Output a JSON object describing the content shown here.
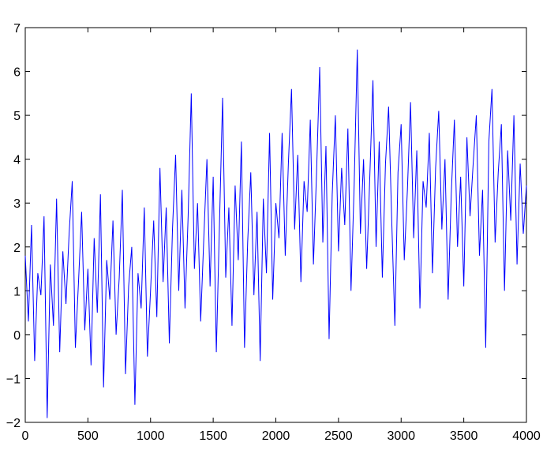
{
  "chart_data": {
    "type": "line",
    "color": "#0000ff",
    "xlim": [
      0,
      4000
    ],
    "xticks": [
      0,
      500,
      1000,
      1500,
      2000,
      2500,
      3000,
      3500,
      4000
    ],
    "ylim": [
      -2,
      7
    ],
    "yticks": [
      {
        "value": -2,
        "label": "−2"
      },
      {
        "value": -1,
        "label": "−1"
      },
      0,
      1,
      2,
      3,
      4,
      5,
      6,
      7
    ],
    "x": [
      0,
      25,
      50,
      75,
      100,
      125,
      150,
      175,
      200,
      225,
      250,
      275,
      300,
      325,
      350,
      375,
      400,
      425,
      450,
      475,
      500,
      525,
      550,
      575,
      600,
      625,
      650,
      675,
      700,
      725,
      750,
      775,
      800,
      825,
      850,
      875,
      900,
      925,
      950,
      975,
      1000,
      1025,
      1050,
      1075,
      1100,
      1125,
      1150,
      1175,
      1200,
      1225,
      1250,
      1275,
      1300,
      1325,
      1350,
      1375,
      1400,
      1425,
      1450,
      1475,
      1500,
      1525,
      1550,
      1575,
      1600,
      1625,
      1650,
      1675,
      1700,
      1725,
      1750,
      1775,
      1800,
      1825,
      1850,
      1875,
      1900,
      1925,
      1950,
      1975,
      2000,
      2025,
      2050,
      2075,
      2100,
      2125,
      2150,
      2175,
      2200,
      2225,
      2250,
      2275,
      2300,
      2325,
      2350,
      2375,
      2400,
      2425,
      2450,
      2475,
      2500,
      2525,
      2550,
      2575,
      2600,
      2625,
      2650,
      2675,
      2700,
      2725,
      2750,
      2775,
      2800,
      2825,
      2850,
      2875,
      2900,
      2925,
      2950,
      2975,
      3000,
      3025,
      3050,
      3075,
      3100,
      3125,
      3150,
      3175,
      3200,
      3225,
      3250,
      3275,
      3300,
      3325,
      3350,
      3375,
      3400,
      3425,
      3450,
      3475,
      3500,
      3525,
      3550,
      3575,
      3600,
      3625,
      3650,
      3675,
      3700,
      3725,
      3750,
      3775,
      3800,
      3825,
      3850,
      3875,
      3900,
      3925,
      3950,
      3975,
      4000
    ],
    "values": [
      1.8,
      0.3,
      2.5,
      -0.6,
      1.4,
      0.9,
      2.7,
      -1.9,
      1.6,
      0.2,
      3.1,
      -0.4,
      1.9,
      0.7,
      2.3,
      3.5,
      -0.3,
      1.2,
      2.8,
      0.1,
      1.5,
      -0.7,
      2.2,
      0.5,
      3.2,
      -1.2,
      1.7,
      0.8,
      2.6,
      0.0,
      1.3,
      3.3,
      -0.9,
      1.1,
      2.0,
      -1.6,
      1.4,
      0.6,
      2.9,
      -0.5,
      1.0,
      2.6,
      0.4,
      3.8,
      1.2,
      2.9,
      -0.2,
      2.4,
      4.1,
      1.0,
      3.3,
      0.6,
      2.7,
      5.5,
      1.5,
      3.0,
      0.3,
      2.2,
      4.0,
      1.1,
      3.6,
      -0.4,
      2.5,
      5.4,
      1.3,
      2.9,
      0.2,
      3.4,
      1.7,
      4.4,
      -0.3,
      2.1,
      3.7,
      0.9,
      2.8,
      -0.6,
      3.1,
      1.4,
      4.6,
      0.8,
      3.0,
      2.2,
      4.6,
      1.8,
      3.9,
      5.6,
      2.4,
      4.1,
      1.2,
      3.5,
      2.8,
      4.9,
      1.6,
      3.7,
      6.1,
      2.1,
      4.3,
      -0.1,
      3.2,
      5.0,
      1.9,
      3.8,
      2.5,
      4.7,
      1.0,
      3.4,
      6.5,
      2.3,
      4.0,
      1.5,
      3.6,
      5.8,
      2.0,
      4.4,
      1.3,
      3.9,
      5.2,
      2.6,
      0.2,
      3.7,
      4.8,
      1.7,
      3.3,
      5.3,
      2.2,
      4.2,
      0.6,
      3.5,
      2.9,
      4.6,
      1.4,
      3.8,
      5.1,
      2.4,
      4.0,
      0.8,
      3.2,
      4.9,
      2.0,
      3.6,
      1.1,
      4.5,
      2.7,
      3.9,
      5.0,
      1.8,
      3.3,
      -0.3,
      4.4,
      5.6,
      2.1,
      3.7,
      4.8,
      1.0,
      4.2,
      2.6,
      5.0,
      1.6,
      3.9,
      2.3,
      3.4
    ]
  }
}
